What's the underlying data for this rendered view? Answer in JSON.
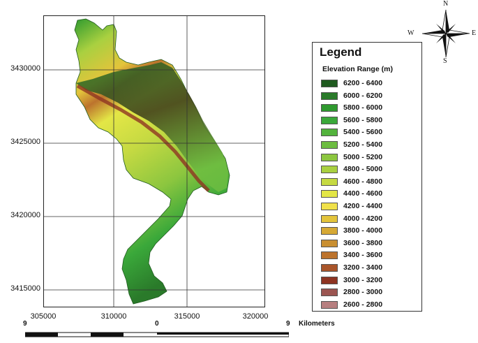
{
  "map": {
    "northing_ticks": [
      "3430000",
      "3425000",
      "3420000",
      "3415000"
    ],
    "easting_ticks": [
      "305000",
      "310000",
      "315000",
      "320000"
    ]
  },
  "legend": {
    "title": "Legend",
    "subtitle": "Elevation Range (m)",
    "items": [
      {
        "label": "6200 - 6400",
        "color": "#1f5a1f"
      },
      {
        "label": "6000 - 6200",
        "color": "#2a7a2a"
      },
      {
        "label": "5800 - 6000",
        "color": "#2f9a2f"
      },
      {
        "label": "5600 - 5800",
        "color": "#3aa83a"
      },
      {
        "label": "5400 - 5600",
        "color": "#53b33d"
      },
      {
        "label": "5200 - 5400",
        "color": "#6dbd41"
      },
      {
        "label": "5000 - 5200",
        "color": "#8cc63f"
      },
      {
        "label": "4800 - 5000",
        "color": "#a9d040"
      },
      {
        "label": "4600 - 4800",
        "color": "#c6da42"
      },
      {
        "label": "4400 - 4600",
        "color": "#e3e646"
      },
      {
        "label": "4200 - 4400",
        "color": "#f0e14a"
      },
      {
        "label": "4000 - 4200",
        "color": "#e3c43b"
      },
      {
        "label": "3800 - 4000",
        "color": "#d6a935"
      },
      {
        "label": "3600 - 3800",
        "color": "#c98f31"
      },
      {
        "label": "3400 - 3600",
        "color": "#bc732d"
      },
      {
        "label": "3200 - 3400",
        "color": "#a9552a"
      },
      {
        "label": "3000 - 3200",
        "color": "#8e3422"
      },
      {
        "label": "2800 - 3000",
        "color": "#9b5551"
      },
      {
        "label": "2600 - 2800",
        "color": "#b77f80"
      }
    ]
  },
  "compass": {
    "n": "N",
    "s": "S",
    "e": "E",
    "w": "W"
  },
  "scale": {
    "left": "9",
    "center": "0",
    "right": "9",
    "unit": "Kilometers"
  }
}
